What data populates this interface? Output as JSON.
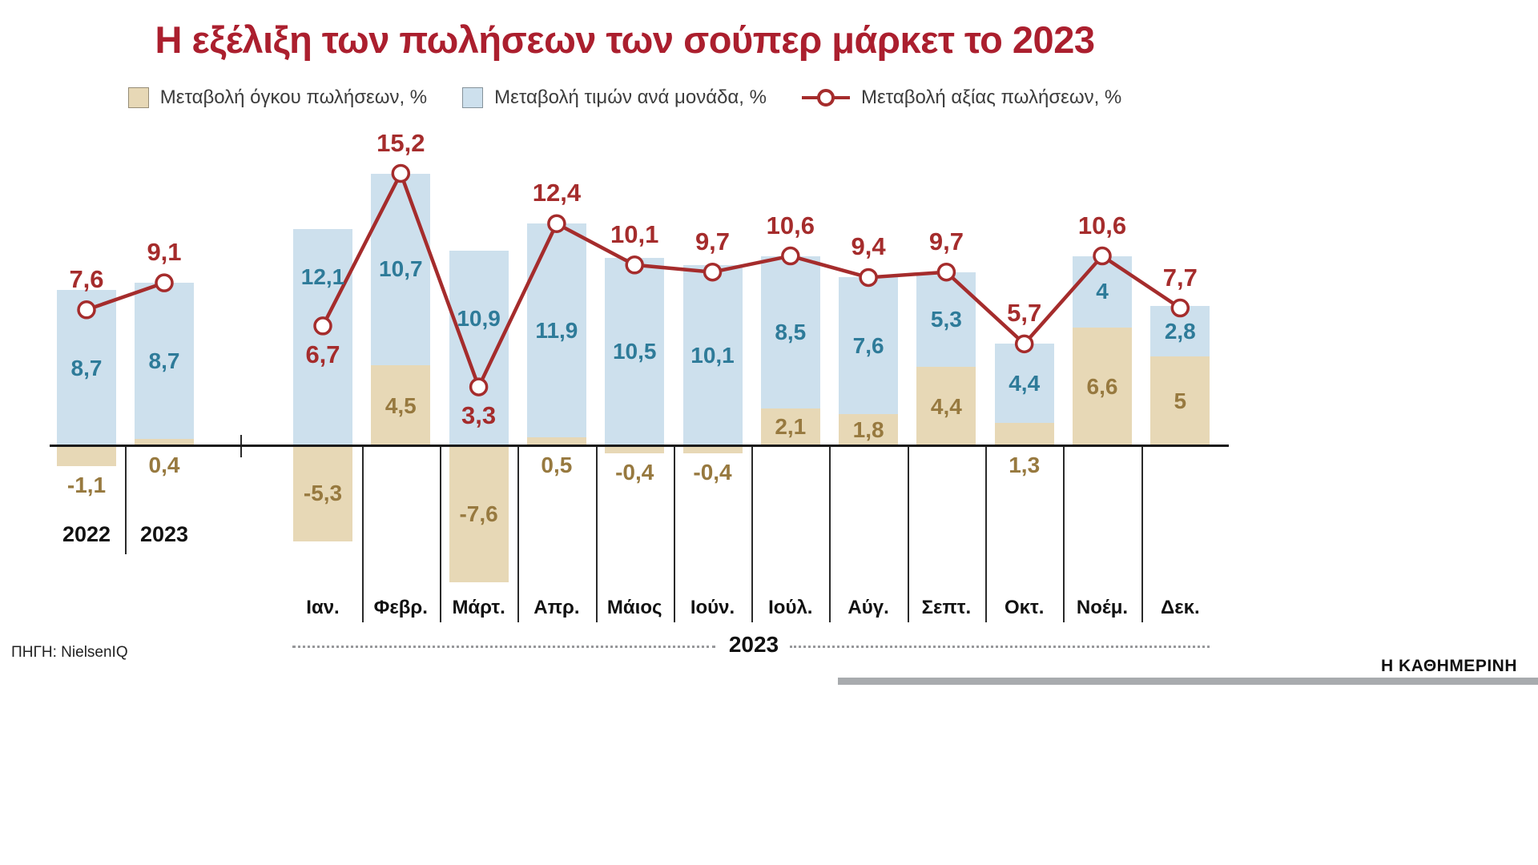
{
  "title": "Η εξέλιξη των πωλήσεων των σούπερ μάρκετ το 2023",
  "legend": [
    {
      "label": "Μεταβολή όγκου πωλήσεων, %",
      "swatch": "volume-swatch",
      "color_key": "volume_bar"
    },
    {
      "label": "Μεταβολή τιμών ανά μονάδα, %",
      "swatch": "price-swatch",
      "color_key": "price_bar"
    },
    {
      "label": "Μεταβολή αξίας πωλήσεων, %",
      "swatch": "line-marker",
      "color_key": "line"
    }
  ],
  "source": "ΠΗΓΗ: NielsenIQ",
  "branding": "Η ΚΑΘΗΜΕΡΙΝΗ",
  "colors": {
    "title": "#ab1f2e",
    "line": "#a52c2c",
    "price_bar": "#cde0ed",
    "price_text": "#2e7b99",
    "volume_bar": "#e7d8b6",
    "volume_text": "#97793f",
    "axis": "#1b1b1b",
    "brand_bar": "#a8abae"
  },
  "chart_data": {
    "type": "bar",
    "overlay": "line",
    "stacking": "volume and price bars stacked from zero line; line shows value change",
    "grid": false,
    "legend_position": "top",
    "groups": [
      {
        "id": "yearly",
        "categories": [
          "2022",
          "2023"
        ],
        "series": [
          {
            "name": "Μεταβολή όγκου πωλήσεων, %",
            "role": "volume",
            "type": "bar",
            "values": [
              -1.1,
              0.4
            ]
          },
          {
            "name": "Μεταβολή τιμών ανά μονάδα, %",
            "role": "price",
            "type": "bar",
            "values": [
              8.7,
              8.7
            ]
          },
          {
            "name": "Μεταβολή αξίας πωλήσεων, %",
            "role": "value",
            "type": "line",
            "values": [
              7.6,
              9.1
            ]
          }
        ],
        "line_label_below_indices": []
      },
      {
        "id": "monthly",
        "group_label": "2023",
        "categories": [
          "Ιαν.",
          "Φεβρ.",
          "Μάρτ.",
          "Απρ.",
          "Μάιος",
          "Ιούν.",
          "Ιούλ.",
          "Αύγ.",
          "Σεπτ.",
          "Οκτ.",
          "Νοέμ.",
          "Δεκ."
        ],
        "series": [
          {
            "name": "Μεταβολή όγκου πωλήσεων, %",
            "role": "volume",
            "type": "bar",
            "values": [
              -5.3,
              4.5,
              -7.6,
              0.5,
              -0.4,
              -0.4,
              2.1,
              1.8,
              4.4,
              1.3,
              6.6,
              5
            ]
          },
          {
            "name": "Μεταβολή τιμών ανά μονάδα, %",
            "role": "price",
            "type": "bar",
            "values": [
              12.1,
              10.7,
              10.9,
              11.9,
              10.5,
              10.1,
              8.5,
              7.6,
              5.3,
              4.4,
              4,
              2.8
            ]
          },
          {
            "name": "Μεταβολή αξίας πωλήσεων, %",
            "role": "value",
            "type": "line",
            "values": [
              6.7,
              15.2,
              3.3,
              12.4,
              10.1,
              9.7,
              10.6,
              9.4,
              9.7,
              5.7,
              10.6,
              7.7
            ]
          }
        ],
        "line_label_below_indices": [
          0,
          2
        ]
      }
    ],
    "ylim": [
      -10,
      17
    ],
    "decimal_separator": ","
  }
}
